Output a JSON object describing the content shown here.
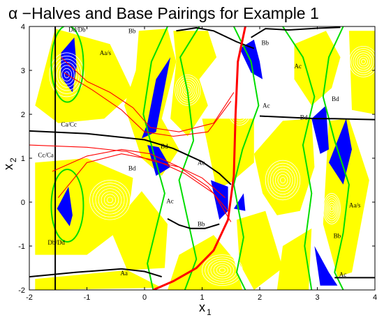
{
  "chart_data": {
    "type": "contour",
    "title": "α −Halves and Base Pairings for Example 1",
    "xlabel": "x",
    "xlabel_sub": "1",
    "ylabel": "x",
    "ylabel_sub": "2",
    "xlim": [
      -2,
      4
    ],
    "ylim": [
      -2,
      4
    ],
    "xticks": [
      "-2",
      "-1",
      "0",
      "1",
      "2",
      "3",
      "4"
    ],
    "yticks": [
      "-2",
      "-1",
      "0",
      "1",
      "2",
      "3",
      "4"
    ],
    "grid": false,
    "colors": {
      "contour_fill": "#ffff00",
      "contour_line": "#ffffff",
      "alpha_half": "#0000ff",
      "boundary_green": "#00dd00",
      "separator_black": "#000000",
      "trajectory_red": "#ff0000"
    },
    "annotations": [
      {
        "text": "Dd/Db",
        "x": -1.32,
        "y": 3.88
      },
      {
        "text": "Bb",
        "x": -0.28,
        "y": 3.85
      },
      {
        "text": "Aa/s",
        "x": -0.78,
        "y": 3.35
      },
      {
        "text": "Ca/Cc",
        "x": -1.45,
        "y": 1.72
      },
      {
        "text": "Cc/Ca",
        "x": -1.85,
        "y": 1.02
      },
      {
        "text": "Bd",
        "x": 0.28,
        "y": 1.22
      },
      {
        "text": "Bd",
        "x": -0.28,
        "y": 0.72
      },
      {
        "text": "Ac",
        "x": 0.92,
        "y": 0.85
      },
      {
        "text": "Ac",
        "x": 0.38,
        "y": -0.02
      },
      {
        "text": "Bb",
        "x": 0.92,
        "y": -0.55
      },
      {
        "text": "Db/Dd",
        "x": -1.68,
        "y": -0.97
      },
      {
        "text": "Aa",
        "x": -0.42,
        "y": -1.67
      },
      {
        "text": "Bb",
        "x": 2.03,
        "y": 3.58
      },
      {
        "text": "Ac",
        "x": 2.6,
        "y": 3.05
      },
      {
        "text": "Ac",
        "x": 2.05,
        "y": 2.15
      },
      {
        "text": "Bd",
        "x": 3.25,
        "y": 2.3
      },
      {
        "text": "Bd",
        "x": 2.7,
        "y": 1.88
      },
      {
        "text": "Aa/s",
        "x": 3.55,
        "y": -0.12
      },
      {
        "text": "Bb",
        "x": 3.28,
        "y": -0.82
      },
      {
        "text": "Ac",
        "x": 3.38,
        "y": -1.7
      }
    ],
    "series": [
      {
        "kind": "separatrix",
        "color": "#000000",
        "points": [
          [
            -2,
            1.62
          ],
          [
            -1,
            1.56
          ],
          [
            0,
            1.42
          ],
          [
            0.5,
            1.22
          ],
          [
            1,
            0.92
          ],
          [
            1.3,
            0.65
          ],
          [
            1.5,
            0.4
          ]
        ]
      },
      {
        "kind": "separatrix",
        "color": "#000000",
        "points": [
          [
            0.4,
            -0.38
          ],
          [
            0.6,
            -0.52
          ],
          [
            0.8,
            -0.6
          ],
          [
            1.05,
            -0.6
          ],
          [
            1.3,
            -0.5
          ]
        ]
      },
      {
        "kind": "separatrix",
        "color": "#000000",
        "points": [
          [
            -2,
            -1.7
          ],
          [
            -1.2,
            -1.6
          ],
          [
            -0.4,
            -1.52
          ],
          [
            0,
            -1.58
          ],
          [
            0.3,
            -1.7
          ]
        ]
      },
      {
        "kind": "separatrix",
        "color": "#000000",
        "points": [
          [
            -1.55,
            -2
          ],
          [
            -1.55,
            4
          ]
        ]
      },
      {
        "kind": "separatrix",
        "color": "#000000",
        "points": [
          [
            0.55,
            3.9
          ],
          [
            0.9,
            3.97
          ],
          [
            1.2,
            3.9
          ],
          [
            1.6,
            3.65
          ],
          [
            1.9,
            3.5
          ]
        ]
      },
      {
        "kind": "separatrix",
        "color": "#000000",
        "points": [
          [
            2.0,
            1.96
          ],
          [
            2.5,
            1.93
          ],
          [
            3.0,
            1.9
          ],
          [
            3.3,
            1.9
          ],
          [
            4,
            1.88
          ]
        ]
      },
      {
        "kind": "separatrix",
        "color": "#000000",
        "points": [
          [
            1.85,
            3.75
          ],
          [
            2.1,
            3.95
          ],
          [
            2.5,
            3.92
          ],
          [
            3.0,
            3.96
          ],
          [
            3.4,
            3.98
          ]
        ]
      },
      {
        "kind": "separatrix",
        "color": "#000000",
        "points": [
          [
            3.3,
            -1.72
          ],
          [
            3.6,
            -1.72
          ],
          [
            4,
            -1.72
          ]
        ]
      },
      {
        "kind": "trajectory",
        "color": "#ff0000",
        "points": [
          [
            -2,
            1.3
          ],
          [
            -1,
            1.25
          ],
          [
            -0.3,
            1.15
          ],
          [
            0.1,
            0.95
          ],
          [
            0.6,
            0.8
          ],
          [
            1.0,
            0.55
          ],
          [
            1.4,
            0.1
          ]
        ]
      },
      {
        "kind": "trajectory",
        "color": "#ff0000",
        "points": [
          [
            -1.6,
            0.7
          ],
          [
            -1.0,
            1.05
          ],
          [
            -0.4,
            1.2
          ],
          [
            0.1,
            1.1
          ],
          [
            0.6,
            0.8
          ],
          [
            1.1,
            0.35
          ],
          [
            1.45,
            -0.2
          ]
        ]
      },
      {
        "kind": "trajectory",
        "color": "#ff0000",
        "points": [
          [
            -1.5,
            0.1
          ],
          [
            -1.0,
            0.9
          ],
          [
            -0.4,
            1.1
          ],
          [
            0.2,
            0.95
          ],
          [
            0.7,
            0.65
          ],
          [
            1.2,
            0.2
          ],
          [
            1.5,
            -0.45
          ]
        ]
      },
      {
        "kind": "trajectory",
        "color": "#ff0000",
        "points": [
          [
            -1.45,
            3.3
          ],
          [
            -1.0,
            2.75
          ],
          [
            -0.6,
            2.5
          ],
          [
            -0.2,
            2.15
          ],
          [
            0.1,
            1.7
          ],
          [
            0.6,
            1.6
          ],
          [
            1.2,
            1.8
          ],
          [
            1.55,
            2.5
          ]
        ]
      },
      {
        "kind": "trajectory",
        "color": "#ff0000",
        "points": [
          [
            -1.4,
            2.95
          ],
          [
            -0.9,
            2.55
          ],
          [
            -0.4,
            2.1
          ],
          [
            0,
            1.6
          ],
          [
            0.5,
            1.5
          ],
          [
            1.1,
            1.6
          ],
          [
            1.5,
            2.3
          ]
        ]
      },
      {
        "kind": "trajectory",
        "color": "#ff0000",
        "points": [
          [
            0.15,
            -2
          ],
          [
            0.5,
            -1.8
          ],
          [
            0.9,
            -1.5
          ],
          [
            1.2,
            -1.1
          ],
          [
            1.45,
            -0.4
          ],
          [
            1.55,
            0.6
          ],
          [
            1.58,
            2.0
          ],
          [
            1.62,
            3.2
          ],
          [
            1.75,
            4
          ]
        ]
      }
    ]
  }
}
